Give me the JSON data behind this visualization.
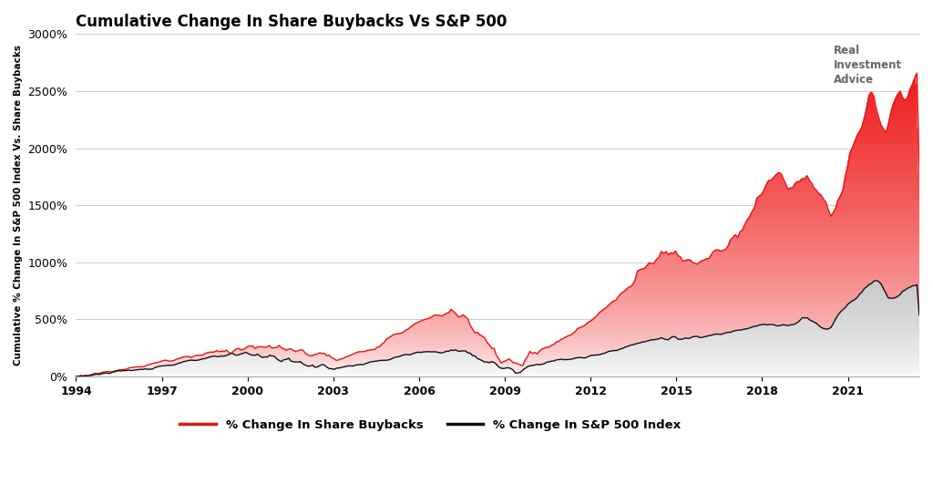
{
  "title": "Cumulative Change In Share Buybacks Vs S&P 500",
  "ylabel": "Cumulative % Change In S&P 500 Index Vs. Share Buybacks",
  "background_color": "#ffffff",
  "grid_color": "#cccccc",
  "buyback_line_color": "#ee1111",
  "sp500_line_color": "#111111",
  "ylim": [
    0,
    3000
  ],
  "yticks": [
    0,
    500,
    1000,
    1500,
    2000,
    2500,
    3000
  ],
  "xticks": [
    1994,
    1997,
    2000,
    2003,
    2006,
    2009,
    2012,
    2015,
    2018,
    2021
  ],
  "legend_buyback": "% Change In Share Buybacks",
  "legend_sp500": "% Change In S&P 500 Index",
  "watermark_line1": "Real",
  "watermark_line2": "Investment",
  "watermark_line3": "Advice",
  "xmin": 1994.0,
  "xmax": 2023.5,
  "n_months": 354
}
